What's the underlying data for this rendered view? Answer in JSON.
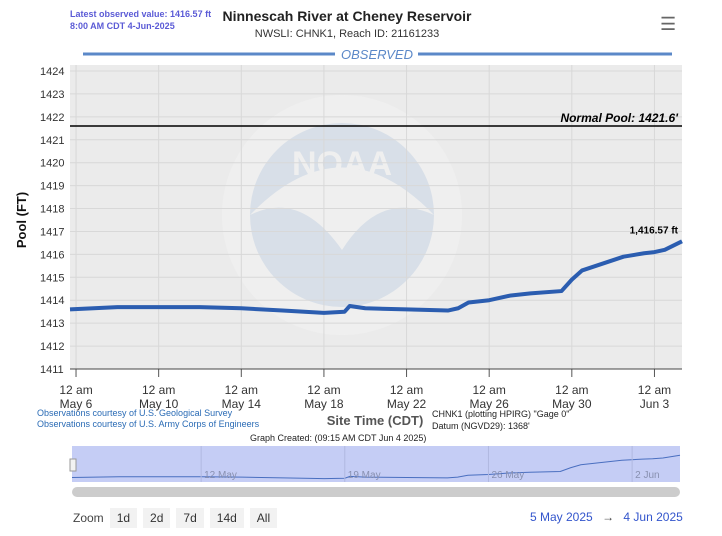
{
  "header": {
    "latest_line1": "Latest observed value: 1416.57 ft",
    "latest_line2": "8:00 AM CDT 4-Jun-2025",
    "title": "Ninnescah River at Cheney Reservoir",
    "subtitle": "NWSLI: CHNK1, Reach ID: 21161233",
    "menu_icon": "hamburger-menu-icon"
  },
  "chart_data": {
    "type": "line",
    "section_label": "OBSERVED",
    "ylabel": "Pool (FT)",
    "xlabel": "Site Time (CDT)",
    "ylim": [
      1411,
      1424
    ],
    "yticks": [
      1411,
      1412,
      1413,
      1414,
      1415,
      1416,
      1417,
      1418,
      1419,
      1420,
      1421,
      1422,
      1423,
      1424
    ],
    "xticks": [
      {
        "date": "2025-05-06",
        "l1": "12 am",
        "l2": "May 6"
      },
      {
        "date": "2025-05-10",
        "l1": "12 am",
        "l2": "May 10"
      },
      {
        "date": "2025-05-14",
        "l1": "12 am",
        "l2": "May 14"
      },
      {
        "date": "2025-05-18",
        "l1": "12 am",
        "l2": "May 18"
      },
      {
        "date": "2025-05-22",
        "l1": "12 am",
        "l2": "May 22"
      },
      {
        "date": "2025-05-26",
        "l1": "12 am",
        "l2": "May 26"
      },
      {
        "date": "2025-05-30",
        "l1": "12 am",
        "l2": "May 30"
      },
      {
        "date": "2025-06-03",
        "l1": "12 am",
        "l2": "Jun 3"
      }
    ],
    "xlim": [
      "2025-05-05T17:00",
      "2025-06-04T08:00"
    ],
    "series": [
      {
        "color": "#2b5db0",
        "points": [
          [
            "2025-05-05T17:00",
            1413.6
          ],
          [
            "2025-05-08T00:00",
            1413.7
          ],
          [
            "2025-05-12T00:00",
            1413.7
          ],
          [
            "2025-05-14T00:00",
            1413.65
          ],
          [
            "2025-05-16T00:00",
            1413.55
          ],
          [
            "2025-05-18T00:00",
            1413.45
          ],
          [
            "2025-05-19T00:00",
            1413.5
          ],
          [
            "2025-05-19T06:00",
            1413.75
          ],
          [
            "2025-05-20T00:00",
            1413.65
          ],
          [
            "2025-05-22T00:00",
            1413.6
          ],
          [
            "2025-05-24T00:00",
            1413.55
          ],
          [
            "2025-05-24T12:00",
            1413.65
          ],
          [
            "2025-05-25T00:00",
            1413.9
          ],
          [
            "2025-05-26T00:00",
            1414.0
          ],
          [
            "2025-05-27T00:00",
            1414.2
          ],
          [
            "2025-05-28T00:00",
            1414.3
          ],
          [
            "2025-05-29T12:00",
            1414.4
          ],
          [
            "2025-05-30T00:00",
            1414.9
          ],
          [
            "2025-05-30T12:00",
            1415.3
          ],
          [
            "2025-05-31T12:00",
            1415.6
          ],
          [
            "2025-06-01T12:00",
            1415.9
          ],
          [
            "2025-06-02T12:00",
            1416.05
          ],
          [
            "2025-06-03T00:00",
            1416.1
          ],
          [
            "2025-06-03T12:00",
            1416.2
          ],
          [
            "2025-06-04T08:00",
            1416.57
          ]
        ]
      }
    ],
    "annotations": [
      {
        "type": "hline",
        "y": 1421.6,
        "label": "Normal Pool: 1421.6'"
      },
      {
        "type": "point_label",
        "label": "1,416.57 ft"
      }
    ],
    "grid": true
  },
  "footer": {
    "credit1": "Observations courtesy of U.S. Geological Survey",
    "credit2": "Observations courtesy of U.S. Army Corps of Engineers",
    "gage1": "CHNK1 (plotting HPIRG) \"Gage 0\"",
    "gage2": "Datum (NGVD29): 1368'",
    "created": "Graph Created: (09:15 AM CDT Jun 4 2025)"
  },
  "navigator": {
    "labels": [
      "12 May",
      "19 May",
      "26 May",
      "2 Jun"
    ]
  },
  "zoom": {
    "label": "Zoom",
    "buttons": [
      "1d",
      "2d",
      "7d",
      "14d",
      "All"
    ],
    "from": "5 May 2025",
    "arrow": "→",
    "to": "4 Jun 2025"
  },
  "watermark": "NOAA"
}
